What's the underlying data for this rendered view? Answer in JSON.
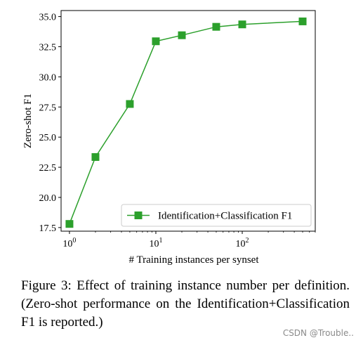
{
  "chart_data": {
    "type": "line",
    "title": "",
    "xlabel": "# Training instances per synset",
    "ylabel": "Zero-shot F1",
    "xscale": "log",
    "xlim": [
      0.8,
      700
    ],
    "ylim": [
      17.2,
      35.5
    ],
    "x_ticks": [
      1,
      10,
      100
    ],
    "x_tick_labels": [
      {
        "base": "10",
        "exp": "0"
      },
      {
        "base": "10",
        "exp": "1"
      },
      {
        "base": "10",
        "exp": "2"
      }
    ],
    "y_ticks": [
      17.5,
      20.0,
      22.5,
      25.0,
      27.5,
      30.0,
      32.5,
      35.0
    ],
    "y_tick_labels": [
      "17.5",
      "20.0",
      "22.5",
      "25.0",
      "27.5",
      "30.0",
      "32.5",
      "35.0"
    ],
    "grid": false,
    "legend_position": "lower-right",
    "series": [
      {
        "name": "Identification+Classification F1",
        "color": "#2ca02c",
        "marker": "square",
        "x": [
          1,
          2,
          5,
          10,
          20,
          50,
          100,
          500
        ],
        "y": [
          17.8,
          23.35,
          27.75,
          32.95,
          33.45,
          34.15,
          34.35,
          34.6
        ]
      }
    ]
  },
  "caption": {
    "text": "Figure 3:  Effect of training instance number per definition.   (Zero-shot performance on the Identification+Classification F1 is reported.)"
  },
  "watermark": "CSDN @Trouble.."
}
